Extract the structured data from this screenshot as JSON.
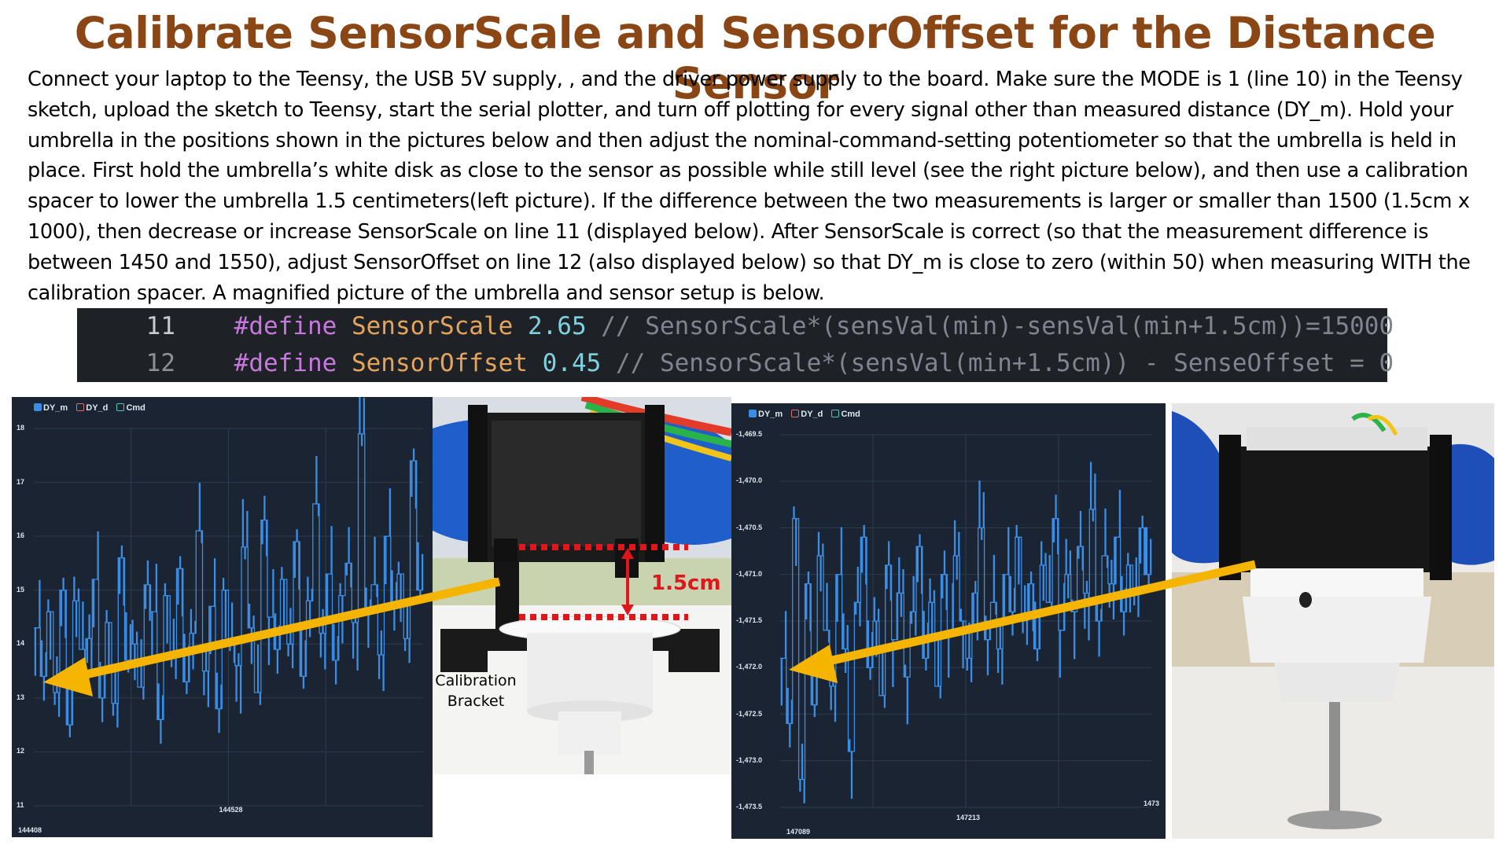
{
  "title": "Calibrate SensorScale and SensorOffset for the Distance Sensor",
  "paragraph": "Connect your laptop to the Teensy,  the USB 5V supply, , and the driver power supply to the board.  Make sure the MODE is 1 (line 10) in the Teensy sketch, upload the sketch to Teensy, start the serial plotter, and turn off plotting for every signal other than measured distance (DY_m).  Hold  your umbrella in the positions  shown  in the pictures below and then adjust the nominal-command-setting potentiometer  so that the umbrella is held in place. First hold the umbrella’s white disk as close to the sensor as possible while still level (see the right picture below), and then use a calibration spacer to lower the umbrella 1.5 centimeters(left picture).   If the difference between the two measurements is larger or smaller than 1500 (1.5cm x 1000), then decrease or increase SensorScale on line 11 (displayed below).  After SensorScale is correct (so that the measurement difference is between 1450 and 1550), adjust SensorOffset  on line 12 (also displayed below) so that DY_m is close to zero (within 50) when measuring WITH the calibration spacer.   A magnified picture of the umbrella and sensor setup is below.",
  "code": [
    {
      "line_no": "11",
      "directive": "#define",
      "name": "SensorScale",
      "value": "2.65",
      "comment": "// SensorScale*(sensVal(min)-sensVal(min+1.5cm))=15000"
    },
    {
      "line_no": "12",
      "directive": "#define",
      "name": "SensorOffset",
      "value": "0.45",
      "comment": "// SensorScale*(sensVal(min+1.5cm)) - SenseOffset = 0"
    }
  ],
  "legend": {
    "dy_m": "DY_m",
    "dy_d": "DY_d",
    "cmd": "Cmd"
  },
  "colors": {
    "title": "#8a4614",
    "plot_bg": "#1b2433",
    "signal": "#3a8ee6",
    "arrow": "#f5b400",
    "marker": "#e0161d"
  },
  "chart_data": [
    {
      "type": "line",
      "series": [
        {
          "name": "DY_m",
          "values": [
            14.3,
            13.4,
            14.6,
            13.1,
            15.0,
            12.5,
            14.8,
            13.9,
            14.1,
            15.2,
            13.0,
            14.4,
            12.9,
            15.6,
            13.7,
            14.0,
            13.2,
            15.1,
            14.6,
            12.6,
            14.9,
            13.8,
            15.4,
            13.3,
            14.2,
            16.1,
            13.5,
            14.7,
            12.8,
            15.0,
            14.1,
            13.6,
            15.8,
            14.3,
            13.1,
            16.3,
            14.5,
            13.9,
            15.2,
            14.0,
            15.9,
            13.4,
            14.8,
            16.6,
            14.2,
            15.3,
            13.7,
            14.9,
            15.5,
            14.4,
            17.9,
            14.6,
            15.1,
            13.8,
            16.0,
            14.7,
            15.3,
            14.1,
            17.4,
            15.0
          ]
        }
      ],
      "yticks": [
        "18",
        "17",
        "16",
        "15",
        "14",
        "13",
        "12",
        "11"
      ],
      "xticks": [
        "144408",
        "144528"
      ],
      "ylim": [
        11,
        18
      ]
    },
    {
      "type": "line",
      "series": [
        {
          "name": "DY_m",
          "values": [
            -1471.9,
            -1472.6,
            -1470.4,
            -1473.2,
            -1471.1,
            -1472.4,
            -1470.8,
            -1471.6,
            -1472.2,
            -1471.0,
            -1471.8,
            -1472.9,
            -1471.3,
            -1470.6,
            -1472.0,
            -1471.5,
            -1472.3,
            -1470.9,
            -1471.7,
            -1471.2,
            -1472.1,
            -1471.4,
            -1470.7,
            -1471.9,
            -1471.3,
            -1472.2,
            -1471.0,
            -1471.6,
            -1470.8,
            -1471.5,
            -1471.9,
            -1471.2,
            -1470.5,
            -1471.7,
            -1471.3,
            -1471.8,
            -1471.0,
            -1471.4,
            -1470.6,
            -1471.5,
            -1471.1,
            -1471.8,
            -1470.9,
            -1471.3,
            -1470.4,
            -1471.6,
            -1471.0,
            -1471.4,
            -1470.7,
            -1471.2,
            -1470.3,
            -1471.5,
            -1470.8,
            -1471.1,
            -1470.6,
            -1471.4,
            -1470.9,
            -1471.2,
            -1470.5,
            -1471.0
          ]
        }
      ],
      "yticks": [
        "-1,469.5",
        "-1,470.0",
        "-1,470.5",
        "-1,471.0",
        "-1,471.5",
        "-1,472.0",
        "-1,472.5",
        "-1,473.0",
        "-1,473.5"
      ],
      "xticks": [
        "147089",
        "147213",
        "1473"
      ],
      "ylim": [
        -1473.5,
        -1469.5
      ]
    }
  ],
  "photos": {
    "left_dimension": "1.5cm",
    "left_caption_1": "Calibration",
    "left_caption_2": "Bracket"
  }
}
